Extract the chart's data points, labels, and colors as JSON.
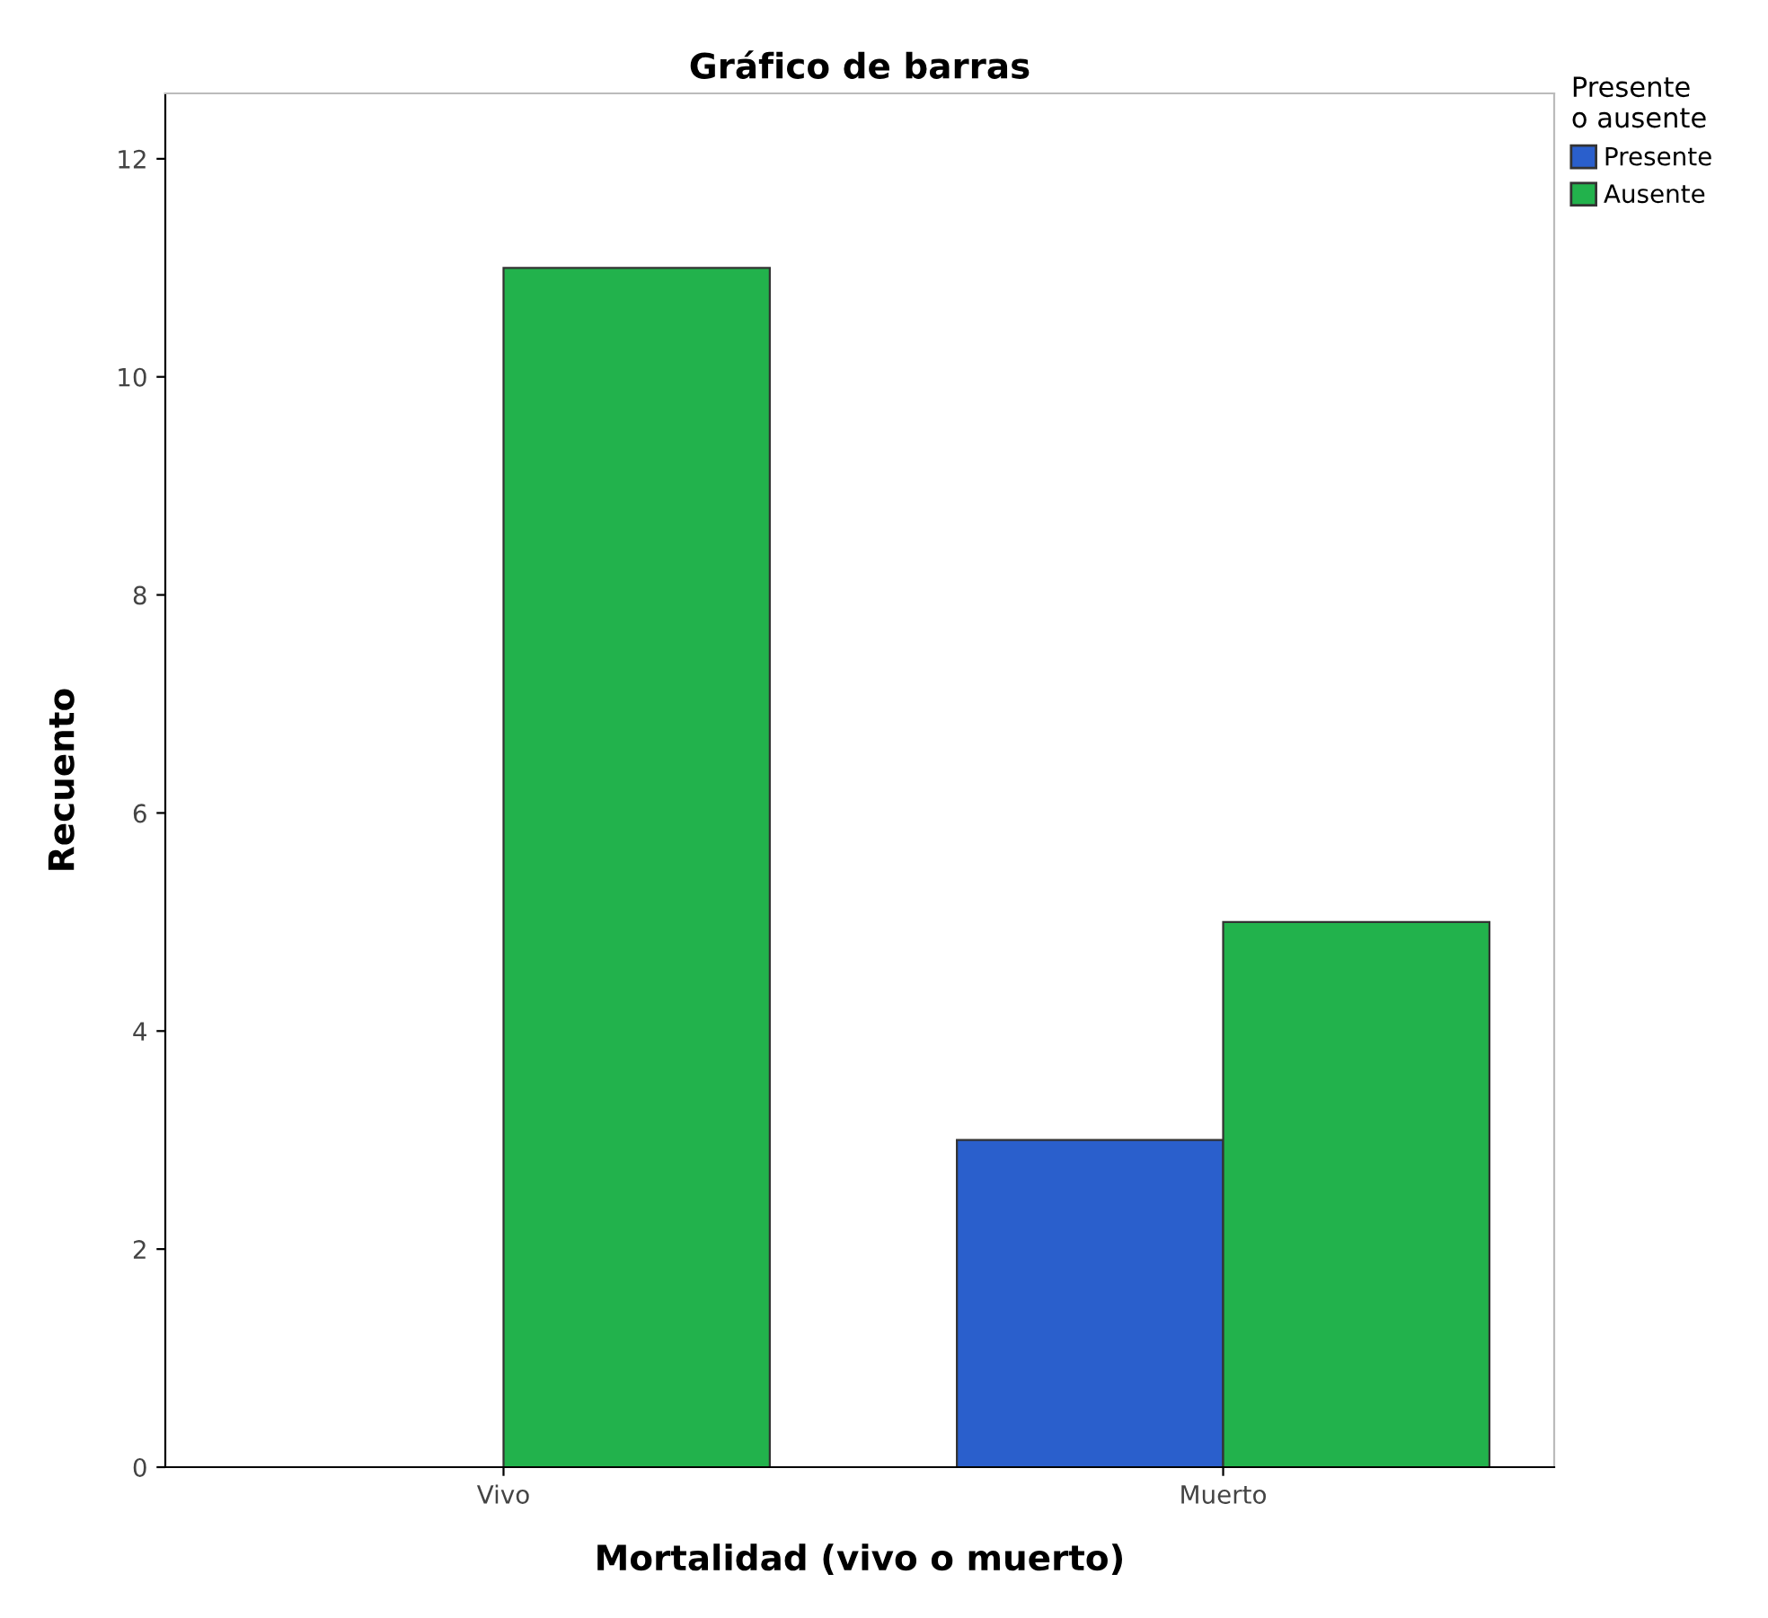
{
  "chart_data": {
    "type": "bar",
    "title": "Gráfico de barras",
    "xlabel": "Mortalidad (vivo o muerto)",
    "ylabel": "Recuento",
    "legend_title": "Presente\no ausente",
    "categories": [
      "Vivo",
      "Muerto"
    ],
    "series": [
      {
        "name": "Presente",
        "color": "#2a5fcc",
        "values": [
          null,
          3
        ]
      },
      {
        "name": "Ausente",
        "color": "#22b24c",
        "values": [
          11,
          5
        ]
      }
    ],
    "ylim": [
      0,
      12.6
    ],
    "yticks": [
      0,
      2,
      4,
      6,
      8,
      10,
      12
    ],
    "grid": false,
    "legend": "top right"
  }
}
